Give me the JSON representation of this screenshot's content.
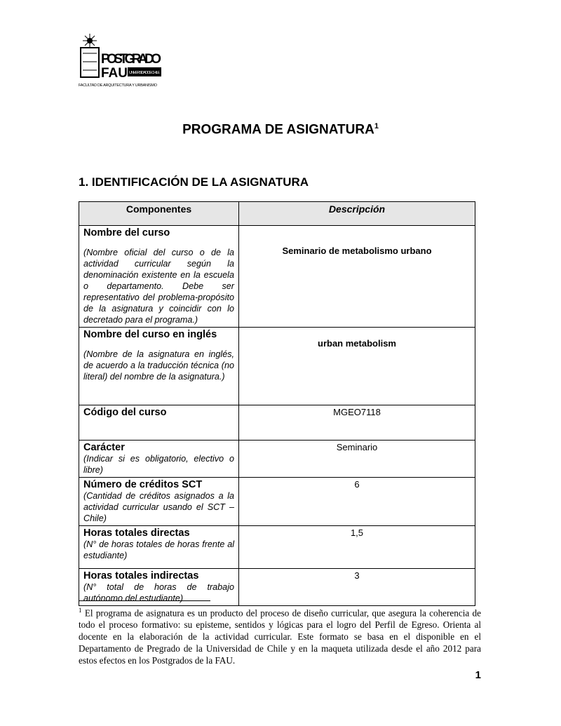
{
  "logo": {
    "line1": "POSTGRADO",
    "line2": "FAU",
    "badge": "UNIVERSIDAD DE CHILE",
    "caption": "FACULTAD DE ARQUITECTURA Y URBANISMO"
  },
  "title": "PROGRAMA DE ASIGNATURA",
  "title_note": "1",
  "section": "1. IDENTIFICACIÓN DE LA ASIGNATURA",
  "table": {
    "headers": [
      "Componentes",
      "Descripción"
    ],
    "rows": [
      {
        "label": "Nombre del curso",
        "hint": "(Nombre oficial del curso o de la actividad curricular según la denominación existente en la escuela o departamento. Debe ser representativo del problema-propósito de la asignatura y coincidir con lo decretado para el programa.)",
        "value": "Seminario de metabolismo urbano"
      },
      {
        "label": "Nombre del curso en inglés",
        "hint": "(Nombre de la asignatura en inglés, de acuerdo a la traducción técnica (no literal) del nombre de la asignatura.)",
        "value": "urban metabolism"
      },
      {
        "label": "Código del curso",
        "hint": "",
        "value": "MGEO7118"
      },
      {
        "label": "Carácter",
        "hint": "(Indicar si es obligatorio, electivo o libre)",
        "value": "Seminario"
      },
      {
        "label": "Número de créditos SCT",
        "hint": "(Cantidad de créditos asignados a la actividad curricular usando el SCT – Chile)",
        "value": "6"
      },
      {
        "label": "Horas totales directas",
        "hint": "(N° de horas totales de horas frente al estudiante)",
        "value": "1,5"
      },
      {
        "label": "Horas totales indirectas",
        "hint": "(N° total de horas de trabajo autónomo del estudiante)",
        "value": "3"
      }
    ]
  },
  "footnote": {
    "mark": "1",
    "text": "El programa de asignatura es un producto del proceso de diseño curricular, que asegura la coherencia de todo el proceso formativo: su episteme, sentidos y lógicas para el logro del Perfil de Egreso. Orienta al docente en la elaboración de la actividad curricular. Este formato se basa en el disponible en el Departamento de Pregrado de la Universidad de Chile y en la maqueta utilizada desde el año 2012 para estos efectos en los Postgrados de la FAU."
  },
  "page_number": "1"
}
